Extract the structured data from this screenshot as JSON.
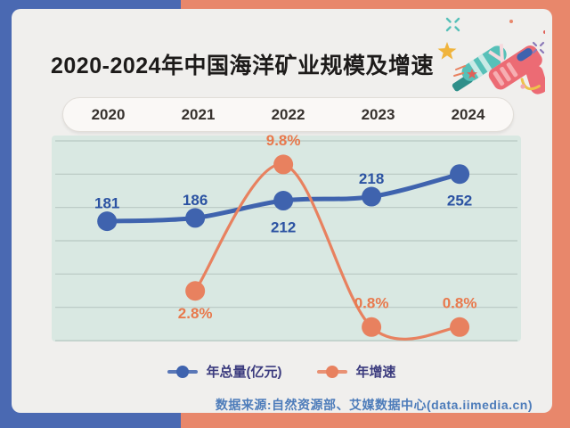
{
  "title": "2020-2024年中国海洋矿业规模及增速",
  "decor": {
    "illustration": "water-gun-icon",
    "sparkles": [
      "star-icon",
      "mini-star-icon",
      "cross-sparkle-icon",
      "dot",
      "speed-lines"
    ]
  },
  "chart_data": {
    "type": "line",
    "title": "2020-2024年中国海洋矿业规模及增速",
    "categories": [
      "2020",
      "2021",
      "2022",
      "2023",
      "2024"
    ],
    "series": [
      {
        "name": "年总量(亿元)",
        "values": [
          181,
          186,
          212,
          218,
          252
        ],
        "labels": [
          "181",
          "186",
          "212",
          "218",
          "252"
        ],
        "label_side": [
          "above",
          "above",
          "below",
          "above",
          "below"
        ],
        "color": "#3f63ae",
        "label_color": "#2b52a2",
        "axis_min": 0,
        "axis_max": 310
      },
      {
        "name": "年增速",
        "values": [
          null,
          2.8,
          9.8,
          0.8,
          0.8
        ],
        "labels": [
          null,
          "2.8%",
          "9.8%",
          "0.8%",
          "0.8%"
        ],
        "label_side": [
          null,
          "below",
          "above",
          "above",
          "above"
        ],
        "color": "#e8815f",
        "label_color": "#e8794d",
        "axis_min": 0,
        "axis_max": 11.4
      }
    ],
    "grid": true,
    "gridline_count": 7,
    "legend_position": "bottom",
    "xlabel": "",
    "ylabel": ""
  },
  "legend": {
    "items": [
      {
        "label": "年总量(亿元)",
        "color": "#3f63ae"
      },
      {
        "label": "年增速",
        "color": "#e8815f"
      }
    ]
  },
  "source": {
    "text": "数据来源:自然资源部、艾媒数据中心(data.iimedia.cn)"
  },
  "colors": {
    "bg_left": "#4a69b2",
    "bg_right": "#e8876b",
    "card_bg": "#f0efed",
    "panel_bg": "#d9e8e2",
    "gridline": "#b9c8c3",
    "pill_bg": "#faf8f6",
    "pill_border": "#e1ddd8",
    "title_text": "#1d1b1a",
    "year_text": "#37322e",
    "legend_text": "#3b3b7e",
    "source_text": "#4d7cba"
  }
}
